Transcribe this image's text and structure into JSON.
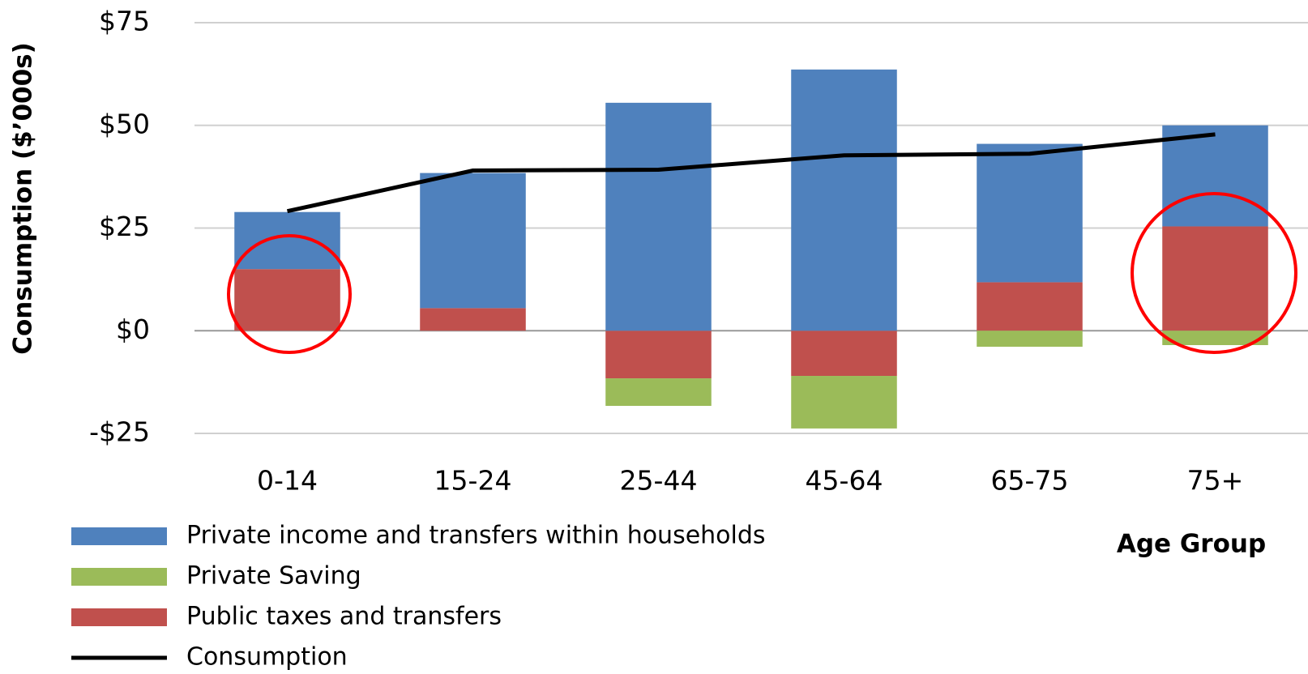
{
  "chart_data": {
    "type": "bar",
    "categories": [
      "0-14",
      "15-24",
      "25-44",
      "45-64",
      "65-75",
      "75+"
    ],
    "series": [
      {
        "name": "Private income and transfers within households",
        "color": "#4f81bd",
        "values": [
          13.9,
          32.9,
          55.5,
          63.6,
          33.7,
          24.6
        ]
      },
      {
        "name": "Private Saving",
        "color": "#9bbb59",
        "values": [
          0,
          0,
          -6.7,
          -12.8,
          -3.9,
          -3.5
        ]
      },
      {
        "name": "Public taxes and transfers",
        "color": "#c0504d",
        "values": [
          15.0,
          5.5,
          -11.6,
          -11.0,
          11.8,
          25.4
        ]
      },
      {
        "name": "Consumption",
        "type": "line",
        "color": "#000000",
        "values": [
          29.1,
          39.0,
          39.2,
          42.7,
          43.1,
          47.8
        ]
      }
    ],
    "ylabel": "Consumption ($’000s)",
    "xlabel": "Age Group",
    "ylim": [
      -25,
      75
    ],
    "yticks": [
      {
        "value": -25,
        "label": "-$25"
      },
      {
        "value": 0,
        "label": "$0"
      },
      {
        "value": 25,
        "label": "$25"
      },
      {
        "value": 50,
        "label": "$50"
      },
      {
        "value": 75,
        "label": "$75"
      }
    ],
    "grid": true,
    "legend": "bottom-left"
  }
}
